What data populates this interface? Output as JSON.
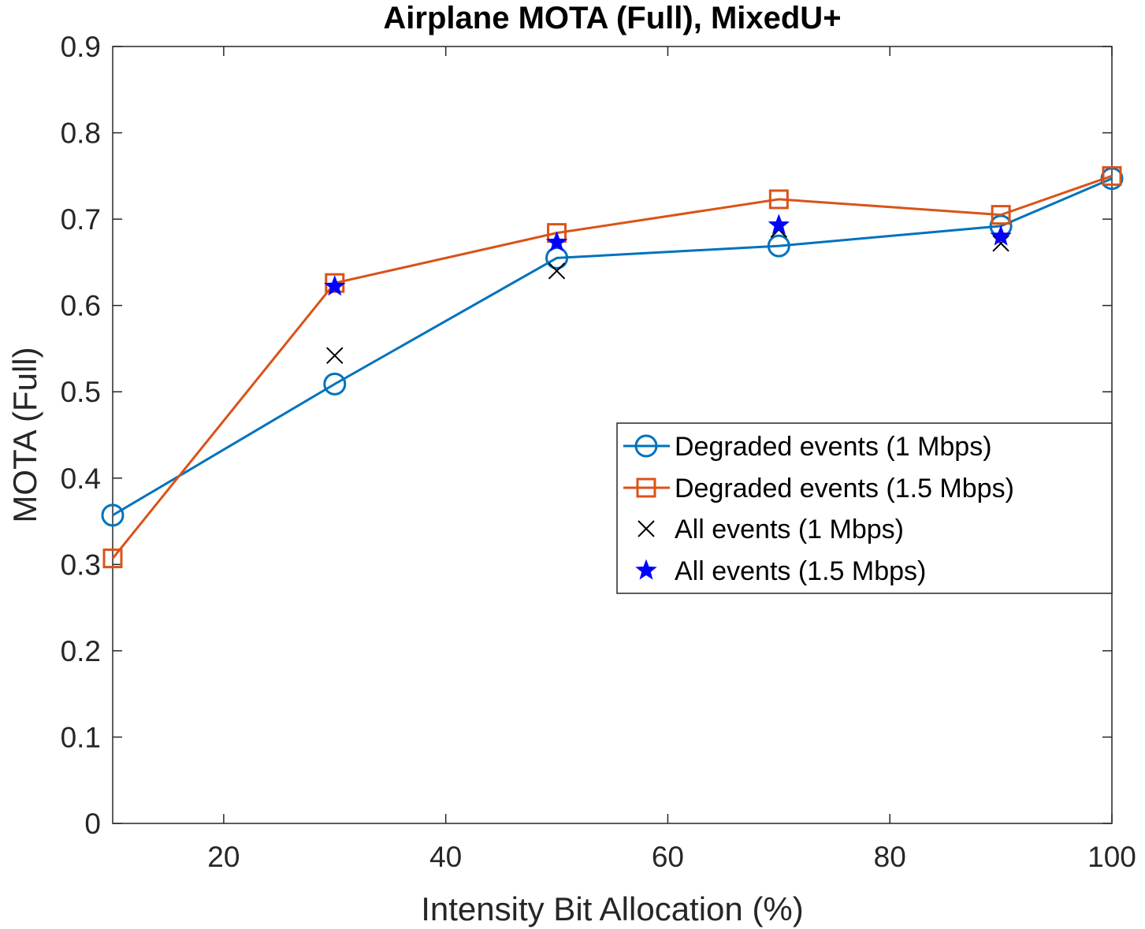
{
  "chart_data": {
    "type": "line",
    "title": "Airplane MOTA (Full), MixedU+",
    "xlabel": "Intensity Bit Allocation (%)",
    "ylabel": "MOTA (Full)",
    "xlim": [
      10,
      100
    ],
    "ylim": [
      0,
      0.9
    ],
    "xticks": [
      20,
      40,
      60,
      80,
      100
    ],
    "yticks": [
      0,
      0.1,
      0.2,
      0.3,
      0.4,
      0.5,
      0.6,
      0.7,
      0.8,
      0.9
    ],
    "xtick_labels": [
      "20",
      "40",
      "60",
      "80",
      "100"
    ],
    "ytick_labels": [
      "0",
      "0.1",
      "0.2",
      "0.3",
      "0.4",
      "0.5",
      "0.6",
      "0.7",
      "0.8",
      "0.9"
    ],
    "grid": false,
    "legend_position": "center-right",
    "series": [
      {
        "name": "Degraded events (1 Mbps)",
        "color": "#0072BD",
        "marker": "circle",
        "line": true,
        "x": [
          10,
          30,
          50,
          70,
          90,
          100
        ],
        "y": [
          0.357,
          0.509,
          0.655,
          0.669,
          0.692,
          0.747
        ]
      },
      {
        "name": "Degraded events (1.5 Mbps)",
        "color": "#D95319",
        "marker": "square",
        "line": true,
        "x": [
          10,
          30,
          50,
          70,
          90,
          100
        ],
        "y": [
          0.307,
          0.626,
          0.684,
          0.723,
          0.705,
          0.75
        ]
      },
      {
        "name": "All events (1 Mbps)",
        "color": "#000000",
        "marker": "x",
        "line": false,
        "x": [
          30,
          50,
          70,
          90
        ],
        "y": [
          0.542,
          0.64,
          0.688,
          0.672
        ]
      },
      {
        "name": "All events (1.5 Mbps)",
        "color": "#0000FF",
        "marker": "star",
        "line": false,
        "x": [
          30,
          50,
          70,
          90
        ],
        "y": [
          0.622,
          0.673,
          0.693,
          0.68
        ]
      }
    ]
  }
}
